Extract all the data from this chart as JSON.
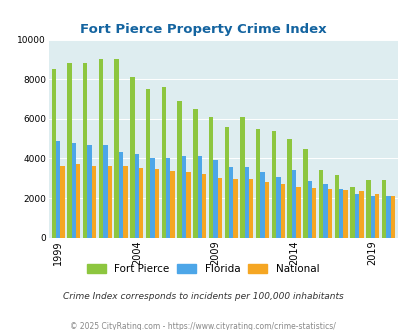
{
  "title": "Fort Pierce Property Crime Index",
  "subtitle": "Crime Index corresponds to incidents per 100,000 inhabitants",
  "footer": "© 2025 CityRating.com - https://www.cityrating.com/crime-statistics/",
  "years": [
    1999,
    2000,
    2001,
    2002,
    2003,
    2004,
    2005,
    2006,
    2007,
    2008,
    2009,
    2010,
    2011,
    2012,
    2013,
    2014,
    2015,
    2016,
    2017,
    2018,
    2019,
    2020
  ],
  "fort_pierce": [
    8500,
    8800,
    8800,
    9000,
    9000,
    8100,
    7500,
    7600,
    6900,
    6500,
    6100,
    5600,
    6100,
    5500,
    5400,
    5000,
    4500,
    3400,
    3150,
    2550,
    2900,
    2900
  ],
  "florida": [
    4900,
    4800,
    4700,
    4700,
    4300,
    4200,
    4000,
    4000,
    4100,
    4100,
    3900,
    3550,
    3550,
    3300,
    3050,
    3400,
    2850,
    2700,
    2450,
    2200,
    2100,
    2100
  ],
  "national": [
    3600,
    3700,
    3600,
    3600,
    3600,
    3500,
    3450,
    3350,
    3300,
    3200,
    3000,
    2950,
    2950,
    2800,
    2700,
    2550,
    2500,
    2450,
    2400,
    2350,
    2200,
    2100
  ],
  "colors": {
    "fort_pierce": "#8dc63f",
    "florida": "#4da6e8",
    "national": "#f5a623"
  },
  "background_color": "#deedf0",
  "title_color": "#1464a0",
  "subtitle_color": "#333333",
  "footer_color": "#888888",
  "ylim": [
    0,
    10000
  ],
  "yticks": [
    0,
    2000,
    4000,
    6000,
    8000,
    10000
  ],
  "xtick_years": [
    1999,
    2004,
    2009,
    2014,
    2019
  ]
}
